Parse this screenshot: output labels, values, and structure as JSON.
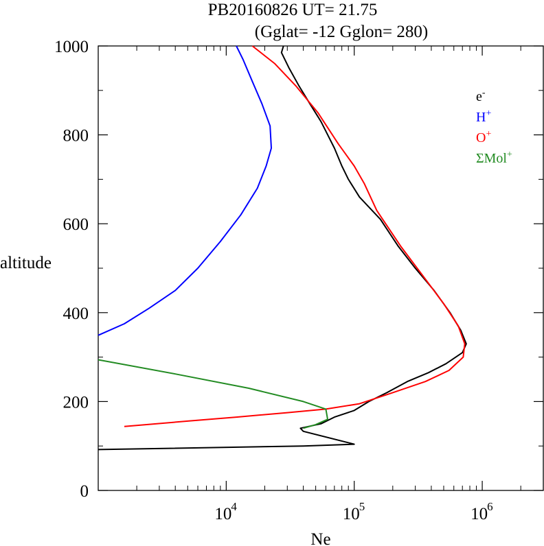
{
  "chart_data": {
    "type": "line",
    "title": "PB20160826   UT=  21.75",
    "subtitle": "(Gglat= -12   Gglon=  280)",
    "xlabel": "Ne",
    "ylabel": "altitude",
    "x_scale": "log",
    "xlim": [
      1000,
      3000000
    ],
    "ylim": [
      0,
      1000
    ],
    "x_ticks": [
      {
        "value": 10000,
        "base": "10",
        "exp": "4"
      },
      {
        "value": 100000,
        "base": "10",
        "exp": "5"
      },
      {
        "value": 1000000,
        "base": "10",
        "exp": "6"
      }
    ],
    "y_ticks": [
      "0",
      "200",
      "400",
      "600",
      "800",
      "1000"
    ],
    "legend_position": "top-right",
    "series": [
      {
        "key": "e",
        "legend_base": "e",
        "legend_sup": "-",
        "color": "#000000",
        "points": [
          [
            1000,
            92
          ],
          [
            40000,
            100
          ],
          [
            100000,
            104
          ],
          [
            40000,
            133
          ],
          [
            38000,
            140
          ],
          [
            55000,
            150
          ],
          [
            70000,
            165
          ],
          [
            100000,
            180
          ],
          [
            130000,
            200
          ],
          [
            180000,
            220
          ],
          [
            260000,
            245
          ],
          [
            380000,
            265
          ],
          [
            520000,
            285
          ],
          [
            700000,
            310
          ],
          [
            750000,
            330
          ],
          [
            680000,
            360
          ],
          [
            560000,
            400
          ],
          [
            420000,
            450
          ],
          [
            300000,
            500
          ],
          [
            220000,
            550
          ],
          [
            160000,
            610
          ],
          [
            110000,
            660
          ],
          [
            90000,
            700
          ],
          [
            80000,
            730
          ],
          [
            70000,
            770
          ],
          [
            55000,
            830
          ],
          [
            45000,
            870
          ],
          [
            37000,
            910
          ],
          [
            31000,
            950
          ],
          [
            27000,
            985
          ],
          [
            28000,
            1000
          ]
        ]
      },
      {
        "key": "H",
        "legend_base": "H",
        "legend_sup": "+",
        "color": "#0000ff",
        "points": [
          [
            1000,
            349
          ],
          [
            1600,
            375
          ],
          [
            2500,
            410
          ],
          [
            4000,
            450
          ],
          [
            6000,
            500
          ],
          [
            9000,
            560
          ],
          [
            13000,
            620
          ],
          [
            17500,
            680
          ],
          [
            20500,
            730
          ],
          [
            22500,
            770
          ],
          [
            22000,
            820
          ],
          [
            19000,
            870
          ],
          [
            16000,
            920
          ],
          [
            13500,
            970
          ],
          [
            12000,
            1000
          ]
        ]
      },
      {
        "key": "O",
        "legend_base": "O",
        "legend_sup": "+",
        "color": "#ff0000",
        "points": [
          [
            1600,
            144
          ],
          [
            5000,
            156
          ],
          [
            12000,
            165
          ],
          [
            30000,
            175
          ],
          [
            60000,
            183
          ],
          [
            110000,
            195
          ],
          [
            200000,
            220
          ],
          [
            360000,
            245
          ],
          [
            550000,
            270
          ],
          [
            710000,
            300
          ],
          [
            730000,
            330
          ],
          [
            650000,
            370
          ],
          [
            500000,
            420
          ],
          [
            350000,
            480
          ],
          [
            230000,
            550
          ],
          [
            150000,
            630
          ],
          [
            120000,
            690
          ],
          [
            100000,
            730
          ],
          [
            75000,
            780
          ],
          [
            52000,
            850
          ],
          [
            35000,
            910
          ],
          [
            24000,
            960
          ],
          [
            16000,
            1000
          ]
        ]
      },
      {
        "key": "Mol",
        "legend_base": "ΣMol",
        "legend_sup": "+",
        "color": "#228b22",
        "points": [
          [
            1000,
            294
          ],
          [
            4000,
            262
          ],
          [
            15000,
            230
          ],
          [
            40000,
            200
          ],
          [
            60000,
            183
          ],
          [
            62000,
            160
          ],
          [
            50000,
            148
          ],
          [
            40000,
            140
          ]
        ]
      }
    ]
  }
}
